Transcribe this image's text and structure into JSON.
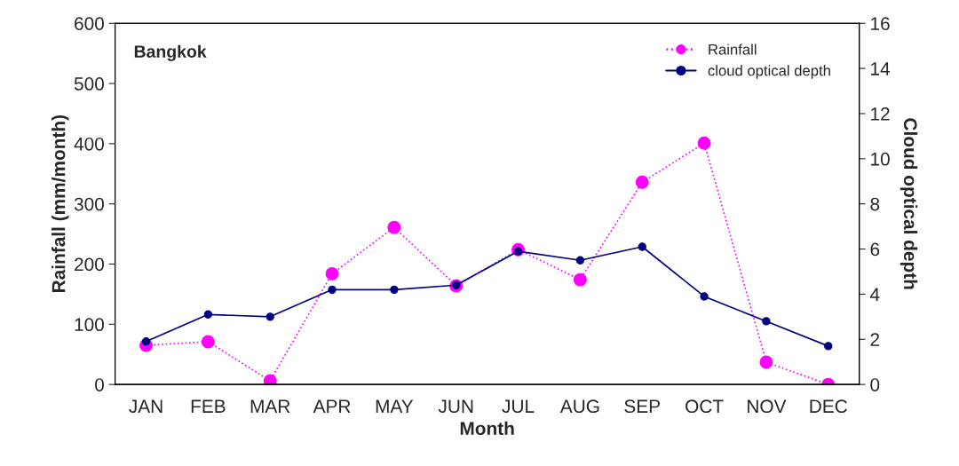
{
  "chart_data": {
    "type": "line",
    "categories": [
      "JAN",
      "FEB",
      "MAR",
      "APR",
      "MAY",
      "JUN",
      "JUL",
      "AUG",
      "SEP",
      "OCT",
      "NOV",
      "DEC"
    ],
    "xlabel": "Month",
    "ylabel": "Rainfall (mm/month)",
    "y2label": "Cloud optical depth",
    "annotations": [
      "Bangkok"
    ],
    "ylim": [
      0,
      600
    ],
    "yticks": [
      0,
      100,
      200,
      300,
      400,
      500,
      600
    ],
    "y2lim": [
      0,
      16
    ],
    "y2ticks": [
      0,
      2,
      4,
      6,
      8,
      10,
      12,
      14,
      16
    ],
    "legend": "top right",
    "grid": false,
    "marker": "circle",
    "series": [
      {
        "name": "Rainfall",
        "color": "#ff00ff",
        "line_style": "dotted",
        "values": [
          65,
          71,
          6,
          184,
          261,
          164,
          224,
          174,
          336,
          401,
          37,
          0
        ]
      },
      {
        "name": "cloud optical depth",
        "color": "#000080",
        "line_style": "solid",
        "axis": "y2",
        "values": [
          1.9,
          3.1,
          3.0,
          4.2,
          4.2,
          4.4,
          5.9,
          5.5,
          6.1,
          3.9,
          2.8,
          1.7
        ]
      }
    ]
  }
}
